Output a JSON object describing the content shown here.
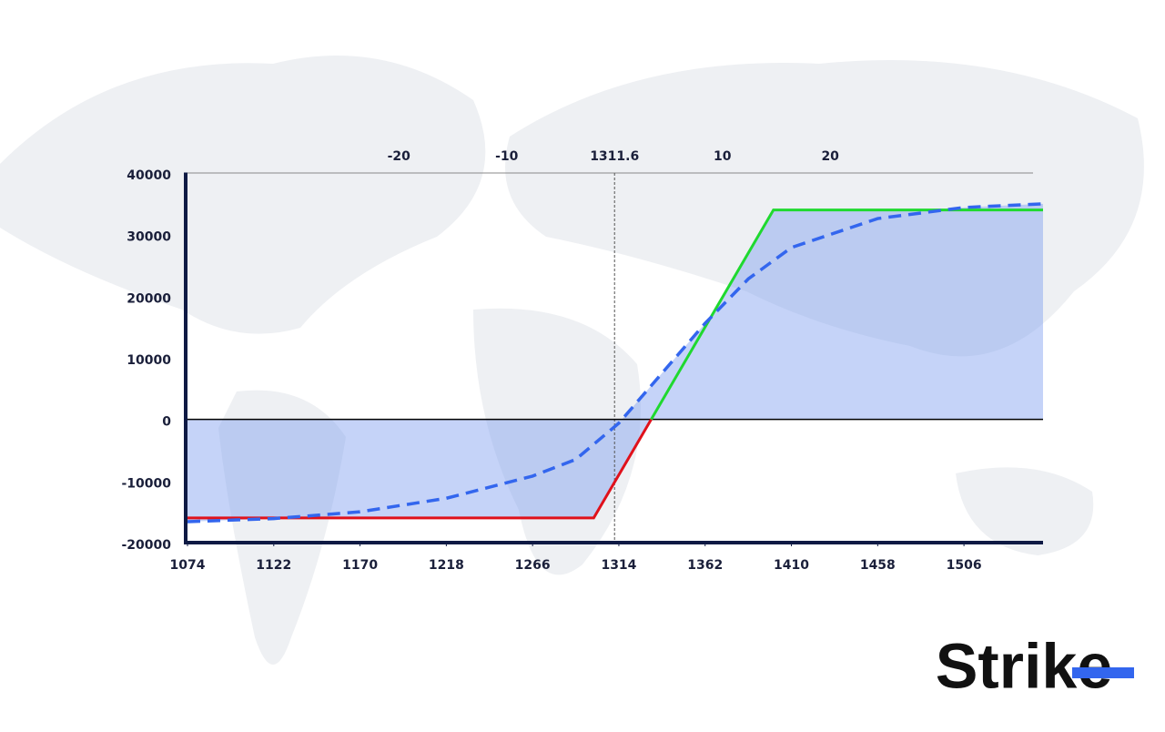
{
  "chart_data": {
    "type": "line",
    "xlim": [
      1074,
      1550
    ],
    "ylim": [
      -20000,
      40000
    ],
    "xticks": [
      1074,
      1122,
      1170,
      1218,
      1266,
      1314,
      1362,
      1410,
      1458,
      1506
    ],
    "yticks": [
      -20000,
      -10000,
      0,
      10000,
      20000,
      30000,
      40000
    ],
    "x2ticks": [
      {
        "value": 1191.6,
        "label": "-20"
      },
      {
        "value": 1251.6,
        "label": "-10"
      },
      1311.6,
      {
        "value": 1371.6,
        "label": "10"
      },
      {
        "value": 1431.6,
        "label": "20"
      }
    ],
    "fill_color": "#7f9ff0",
    "series": [
      {
        "color": "#e0111b",
        "x": [
          1074,
          1300,
          1332
        ],
        "values": [
          -16000,
          -16000,
          0
        ]
      },
      {
        "color": "#1fd92f",
        "x": [
          1332,
          1400,
          1550
        ],
        "values": [
          0,
          34000,
          34000
        ]
      },
      {
        "color": "#3366ee",
        "dashed": true,
        "x": [
          1074,
          1122,
          1170,
          1218,
          1266,
          1290,
          1314,
          1338,
          1362,
          1386,
          1410,
          1458,
          1506,
          1550
        ],
        "values": [
          -16600,
          -16100,
          -15000,
          -12800,
          -9200,
          -6500,
          -600,
          7500,
          15600,
          22800,
          27900,
          32600,
          34400,
          35000
        ]
      }
    ]
  },
  "logo": "Strike"
}
